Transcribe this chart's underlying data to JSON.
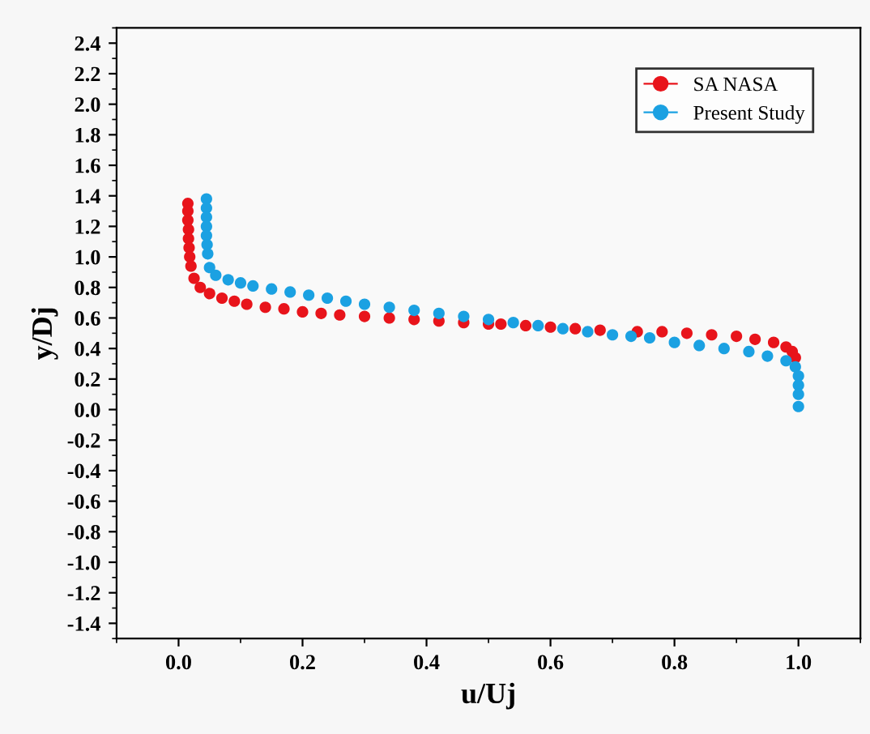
{
  "chart_data": {
    "type": "scatter",
    "xlabel": "u/Uj",
    "ylabel": "y/Dj",
    "xlim": [
      -0.1,
      1.1
    ],
    "ylim": [
      -1.5,
      2.5
    ],
    "xticks": [
      {
        "value": 0,
        "label": "0.0"
      },
      0.2,
      0.4,
      0.6,
      0.8,
      {
        "value": 1,
        "label": "1.0"
      }
    ],
    "yticks": [
      -1.4,
      -1.2,
      {
        "value": -1,
        "label": "-1.0"
      },
      -0.8,
      -0.6,
      -0.4,
      -0.2,
      {
        "value": 0,
        "label": "0.0"
      },
      0.2,
      0.4,
      0.6,
      0.8,
      {
        "value": 1,
        "label": "1.0"
      },
      1.2,
      1.4,
      1.6,
      1.8,
      {
        "value": 2,
        "label": "2.0"
      },
      2.2,
      2.4
    ],
    "grid": false,
    "legend": "top right",
    "marker": "circle",
    "series": [
      {
        "name": "SA NASA",
        "color": "#e8141b",
        "x": [
          0.015,
          0.015,
          0.015,
          0.016,
          0.016,
          0.017,
          0.018,
          0.02,
          0.025,
          0.035,
          0.05,
          0.07,
          0.09,
          0.11,
          0.14,
          0.17,
          0.2,
          0.23,
          0.26,
          0.3,
          0.34,
          0.38,
          0.42,
          0.46,
          0.5,
          0.52,
          0.56,
          0.6,
          0.64,
          0.68,
          0.74,
          0.78,
          0.82,
          0.86,
          0.9,
          0.93,
          0.96,
          0.98,
          0.99,
          0.995
        ],
        "values": [
          1.35,
          1.3,
          1.24,
          1.18,
          1.12,
          1.06,
          1.0,
          0.94,
          0.86,
          0.8,
          0.76,
          0.73,
          0.71,
          0.69,
          0.67,
          0.66,
          0.64,
          0.63,
          0.62,
          0.61,
          0.6,
          0.59,
          0.58,
          0.57,
          0.56,
          0.56,
          0.55,
          0.54,
          0.53,
          0.52,
          0.51,
          0.51,
          0.5,
          0.49,
          0.48,
          0.46,
          0.44,
          0.41,
          0.38,
          0.34
        ]
      },
      {
        "name": "Present Study",
        "color": "#1ba1e2",
        "x": [
          0.045,
          0.045,
          0.045,
          0.045,
          0.045,
          0.046,
          0.047,
          0.05,
          0.06,
          0.08,
          0.1,
          0.12,
          0.15,
          0.18,
          0.21,
          0.24,
          0.27,
          0.3,
          0.34,
          0.38,
          0.42,
          0.46,
          0.5,
          0.54,
          0.58,
          0.62,
          0.66,
          0.7,
          0.73,
          0.76,
          0.8,
          0.84,
          0.88,
          0.92,
          0.95,
          0.98,
          0.995,
          1.0,
          1.0,
          1.0,
          1.0
        ],
        "values": [
          1.38,
          1.32,
          1.26,
          1.2,
          1.14,
          1.08,
          1.02,
          0.93,
          0.88,
          0.85,
          0.83,
          0.81,
          0.79,
          0.77,
          0.75,
          0.73,
          0.71,
          0.69,
          0.67,
          0.65,
          0.63,
          0.61,
          0.59,
          0.57,
          0.55,
          0.53,
          0.51,
          0.49,
          0.48,
          0.47,
          0.44,
          0.42,
          0.4,
          0.38,
          0.35,
          0.32,
          0.28,
          0.22,
          0.16,
          0.1,
          0.02
        ]
      }
    ]
  }
}
